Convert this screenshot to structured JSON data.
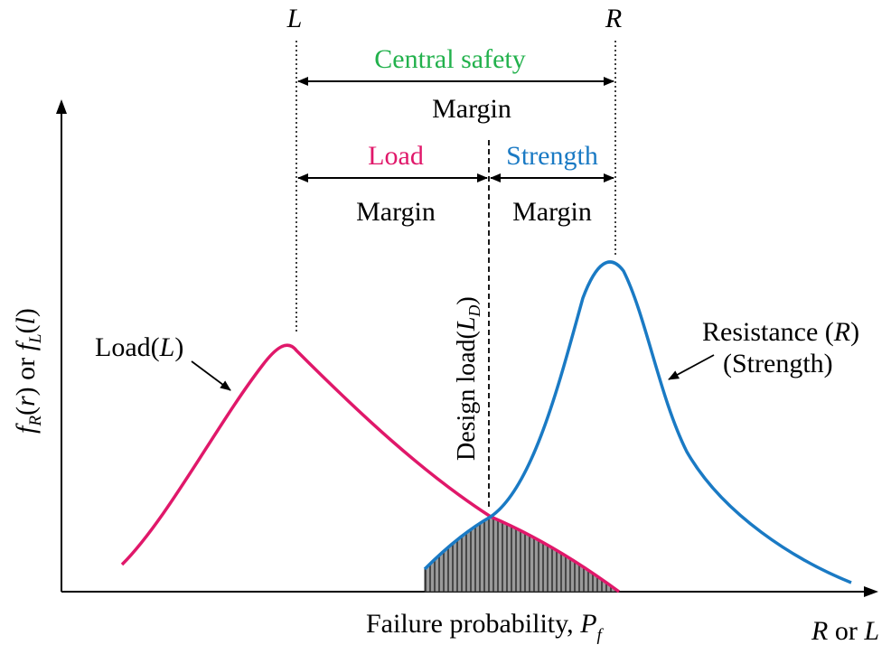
{
  "top_labels": {
    "L": "L",
    "R": "R"
  },
  "central": {
    "line1": "Central safety",
    "line2": "Margin"
  },
  "load_margin": {
    "line1": "Load",
    "line2": "Margin"
  },
  "strength_margin": {
    "line1": "Strength",
    "line2": "Margin"
  },
  "design_load": {
    "text": "Design load(",
    "symbol": "L",
    "subscript": "D",
    "close": ")"
  },
  "y_axis": {
    "f1": "f",
    "sub1": "R",
    "open1": "(",
    "var1": "r",
    "close1": ")",
    "or": " or ",
    "f2": "f",
    "sub2": "L",
    "open2": "(",
    "var2": "l",
    "close2": ")"
  },
  "load_curve_label": {
    "text": "Load(",
    "symbol": "L",
    "close": ")"
  },
  "resistance_label": {
    "line1_text": "Resistance (",
    "line1_symbol": "R",
    "line1_close": ")",
    "line2": "(Strength)"
  },
  "failure_label": {
    "text": "Failure probability, ",
    "symbol": "P",
    "subscript": "f"
  },
  "x_axis_label": {
    "r": "R",
    "or": " or ",
    "l": "L"
  },
  "colors": {
    "load": "#e0186a",
    "strength": "#1a7ac4",
    "central": "#22b14c",
    "axis": "#000000",
    "hatch": "#555555"
  }
}
